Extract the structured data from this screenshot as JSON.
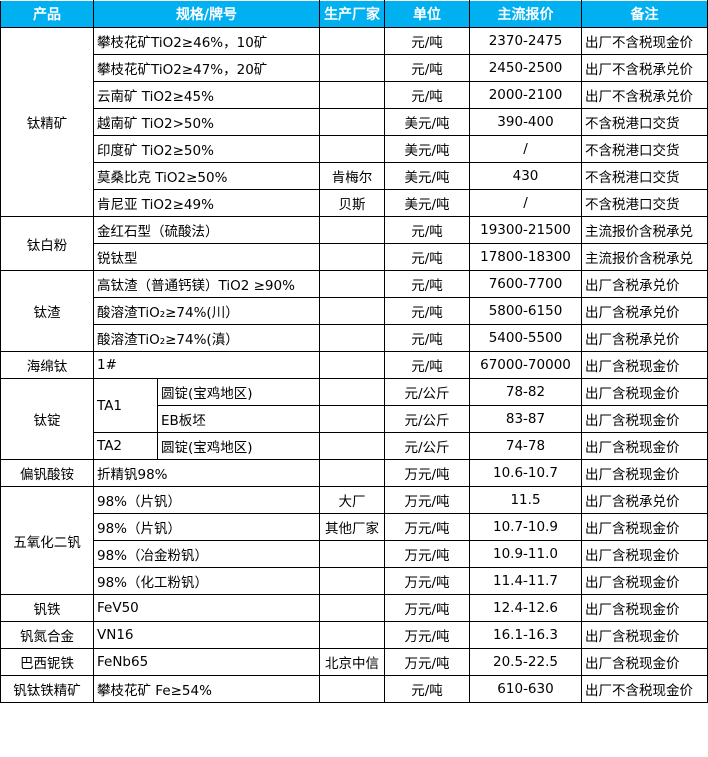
{
  "header_color": "#00b0f0",
  "headers": [
    "产品",
    "规格/牌号",
    "生产厂家",
    "单位",
    "主流报价",
    "备注"
  ],
  "groups": [
    {
      "product": "钛精矿",
      "rows": [
        {
          "spec": "攀枝花矿TiO2≥46%，10矿",
          "maker": "",
          "unit": "元/吨",
          "price": "2370-2475",
          "note": "出厂不含税现金价"
        },
        {
          "spec": "攀枝花矿TiO2≥47%，20矿",
          "maker": "",
          "unit": "元/吨",
          "price": "2450-2500",
          "note": "出厂不含税承兑价"
        },
        {
          "spec": "云南矿 TiO2≥45%",
          "maker": "",
          "unit": "元/吨",
          "price": "2000-2100",
          "note": "出厂不含税承兑价"
        },
        {
          "spec": "越南矿 TiO2>50%",
          "maker": "",
          "unit": "美元/吨",
          "price": "390-400",
          "note": "不含税港口交货"
        },
        {
          "spec": "印度矿 TiO2≥50%",
          "maker": "",
          "unit": "美元/吨",
          "price": "/",
          "note": "不含税港口交货"
        },
        {
          "spec": "莫桑比克 TiO2≥50%",
          "maker": "肯梅尔",
          "unit": "美元/吨",
          "price": "430",
          "note": "不含税港口交货"
        },
        {
          "spec": "肯尼亚 TiO2≥49%",
          "maker": "贝斯",
          "unit": "美元/吨",
          "price": "/",
          "note": "不含税港口交货"
        }
      ]
    },
    {
      "product": "钛白粉",
      "rows": [
        {
          "spec": "金红石型（硫酸法）",
          "maker": "",
          "unit": "元/吨",
          "price": "19300-21500",
          "note": "主流报价含税承兑"
        },
        {
          "spec": "锐钛型",
          "maker": "",
          "unit": "元/吨",
          "price": "17800-18300",
          "note": "主流报价含税承兑"
        }
      ]
    },
    {
      "product": "钛渣",
      "rows": [
        {
          "spec": "高钛渣（普通钙镁）TiO2 ≥90%",
          "maker": "",
          "unit": "元/吨",
          "price": "7600-7700",
          "note": "出厂含税承兑价"
        },
        {
          "spec": "酸溶渣TiO₂≥74%(川）",
          "maker": "",
          "unit": "元/吨",
          "price": "5800-6150",
          "note": "出厂含税承兑价"
        },
        {
          "spec": "酸溶渣TiO₂≥74%(滇）",
          "maker": "",
          "unit": "元/吨",
          "price": "5400-5500",
          "note": "出厂含税承兑价"
        }
      ]
    },
    {
      "product": "海绵钛",
      "rows": [
        {
          "spec": "1#",
          "maker": "",
          "unit": "元/吨",
          "price": "67000-70000",
          "note": "出厂含税现金价"
        }
      ]
    },
    {
      "product": "钛锭",
      "rows": [
        {
          "grade": "TA1",
          "grade_span": 2,
          "spec": "圆锭(宝鸡地区)",
          "maker": "",
          "unit": "元/公斤",
          "price": "78-82",
          "note": "出厂含税现金价"
        },
        {
          "spec": "EB板坯",
          "maker": "",
          "unit": "元/公斤",
          "price": "83-87",
          "note": "出厂含税现金价"
        },
        {
          "grade": "TA2",
          "grade_span": 1,
          "spec": "圆锭(宝鸡地区)",
          "maker": "",
          "unit": "元/公斤",
          "price": "74-78",
          "note": "出厂含税现金价"
        }
      ]
    },
    {
      "product": "偏钒酸铵",
      "rows": [
        {
          "spec": "折精钒98%",
          "maker": "",
          "unit": "万元/吨",
          "price": "10.6-10.7",
          "note": "出厂含税现金价"
        }
      ]
    },
    {
      "product": "五氧化二钒",
      "rows": [
        {
          "spec": "98%（片钒）",
          "maker": "大厂",
          "unit": "万元/吨",
          "price": "11.5",
          "note": "出厂含税承兑价"
        },
        {
          "spec": "98%（片钒）",
          "maker": "其他厂家",
          "unit": "万元/吨",
          "price": "10.7-10.9",
          "note": "出厂含税现金价"
        },
        {
          "spec": "98%（冶金粉钒）",
          "maker": "",
          "unit": "万元/吨",
          "price": "10.9-11.0",
          "note": "出厂含税现金价"
        },
        {
          "spec": "98%（化工粉钒）",
          "maker": "",
          "unit": "万元/吨",
          "price": "11.4-11.7",
          "note": "出厂含税现金价"
        }
      ]
    },
    {
      "product": "钒铁",
      "rows": [
        {
          "spec": "FeV50",
          "maker": "",
          "unit": "万元/吨",
          "price": "12.4-12.6",
          "note": "出厂含税现金价"
        }
      ]
    },
    {
      "product": "钒氮合金",
      "rows": [
        {
          "spec": "VN16",
          "maker": "",
          "unit": "万元/吨",
          "price": "16.1-16.3",
          "note": "出厂含税现金价"
        }
      ]
    },
    {
      "product": "巴西铌铁",
      "rows": [
        {
          "spec": "FeNb65",
          "maker": "北京中信",
          "unit": "万元/吨",
          "price": "20.5-22.5",
          "note": "出厂含税现金价"
        }
      ]
    },
    {
      "product": "钒钛铁精矿",
      "rows": [
        {
          "spec": "攀枝花矿 Fe≥54%",
          "maker": "",
          "unit": "元/吨",
          "price": "610-630",
          "note": "出厂不含税现金价"
        }
      ]
    }
  ]
}
